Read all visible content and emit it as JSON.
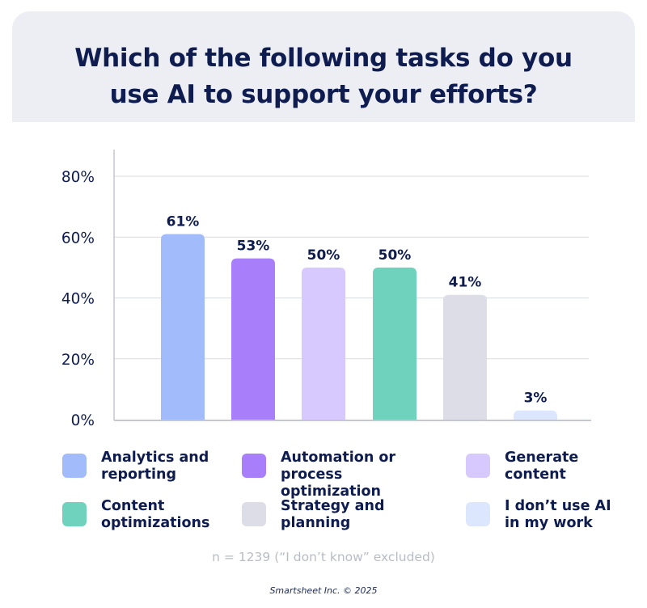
{
  "title": {
    "line1": "Which of the following tasks do you",
    "line2": "use AI to support your efforts?"
  },
  "chart_data": {
    "type": "bar",
    "title": "Which of the following tasks do you use AI to support your efforts?",
    "ylim": [
      0,
      80
    ],
    "yticks": [
      0,
      20,
      40,
      60,
      80
    ],
    "ytick_labels": [
      "0%",
      "20%",
      "40%",
      "60%",
      "80%"
    ],
    "grid": true,
    "categories": [
      "Analytics and reporting",
      "Automation or process optimization",
      "Generate content",
      "Content optimizations",
      "Strategy and planning",
      "I don’t use AI in my work"
    ],
    "values": [
      61,
      53,
      50,
      50,
      41,
      3
    ],
    "data_labels": [
      "61%",
      "53%",
      "50%",
      "50%",
      "41%",
      "3%"
    ],
    "colors": [
      "#a1bbfb",
      "#a97efa",
      "#d7c9fd",
      "#6ed2bc",
      "#dcdde6",
      "#dce6fd"
    ],
    "legend_position": "bottom"
  },
  "legend": [
    {
      "line1": "Analytics and",
      "line2": "reporting",
      "color": "#a1bbfb"
    },
    {
      "line1": "Automation or",
      "line2": "process optimization",
      "color": "#a97efa"
    },
    {
      "line1": "Generate",
      "line2": "content",
      "color": "#d7c9fd"
    },
    {
      "line1": "Content",
      "line2": "optimizations",
      "color": "#6ed2bc"
    },
    {
      "line1": "Strategy and",
      "line2": "planning",
      "color": "#dcdde6"
    },
    {
      "line1": "I don’t use AI",
      "line2": "in my work",
      "color": "#dce6fd"
    }
  ],
  "note": "n = 1239 (“I don’t know” excluded)",
  "credit": "Smartsheet Inc. © 2025"
}
